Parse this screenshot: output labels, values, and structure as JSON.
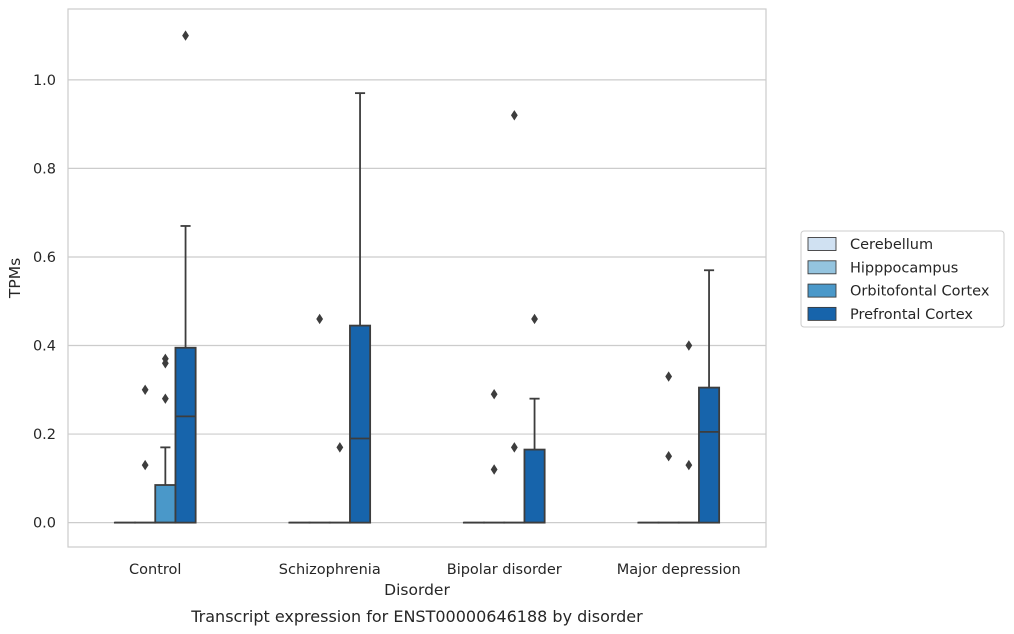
{
  "chart_data": {
    "type": "box",
    "xlabel": "Disorder",
    "ylabel": "TPMs",
    "caption": "Transcript expression for ENST00000646188 by disorder",
    "ylim": [
      -0.055,
      1.16
    ],
    "yticks": [
      "0.0",
      "0.2",
      "0.4",
      "0.6",
      "0.8",
      "1.0"
    ],
    "grid": true,
    "legend_position": "right",
    "categories": [
      "Control",
      "Schizophrenia",
      "Bipolar disorder",
      "Major depression"
    ],
    "series": [
      {
        "name": "Cerebellum",
        "color": "#d0e1f2",
        "boxes": [
          {
            "q1": 0,
            "median": 0,
            "q3": 0,
            "whislo": 0,
            "whishi": 0,
            "fliers": []
          },
          {
            "q1": 0,
            "median": 0,
            "q3": 0,
            "whislo": 0,
            "whishi": 0,
            "fliers": []
          },
          {
            "q1": 0,
            "median": 0,
            "q3": 0,
            "whislo": 0,
            "whishi": 0,
            "fliers": []
          },
          {
            "q1": 0,
            "median": 0,
            "q3": 0,
            "whislo": 0,
            "whishi": 0,
            "fliers": []
          }
        ]
      },
      {
        "name": "Hipppocampus",
        "color": "#94c4df",
        "boxes": [
          {
            "q1": 0,
            "median": 0,
            "q3": 0,
            "whislo": 0,
            "whishi": 0,
            "fliers": [
              0.13,
              0.3
            ]
          },
          {
            "q1": 0,
            "median": 0,
            "q3": 0,
            "whislo": 0,
            "whishi": 0,
            "fliers": [
              0.46
            ]
          },
          {
            "q1": 0,
            "median": 0,
            "q3": 0,
            "whislo": 0,
            "whishi": 0,
            "fliers": [
              0.12,
              0.29
            ]
          },
          {
            "q1": 0,
            "median": 0,
            "q3": 0,
            "whislo": 0,
            "whishi": 0,
            "fliers": [
              0.15,
              0.33
            ]
          }
        ]
      },
      {
        "name": "Orbitofontal Cortex",
        "color": "#4a98c9",
        "boxes": [
          {
            "q1": 0,
            "median": 0,
            "q3": 0.085,
            "whislo": 0,
            "whishi": 0.17,
            "fliers": [
              0.28,
              0.36,
              0.37
            ]
          },
          {
            "q1": 0,
            "median": 0,
            "q3": 0,
            "whislo": 0,
            "whishi": 0,
            "fliers": [
              0.17
            ]
          },
          {
            "q1": 0,
            "median": 0,
            "q3": 0,
            "whislo": 0,
            "whishi": 0,
            "fliers": [
              0.17,
              0.92
            ]
          },
          {
            "q1": 0,
            "median": 0,
            "q3": 0,
            "whislo": 0,
            "whishi": 0,
            "fliers": [
              0.13,
              0.4
            ]
          }
        ]
      },
      {
        "name": "Prefrontal Cortex",
        "color": "#1764ab",
        "boxes": [
          {
            "q1": 0,
            "median": 0.24,
            "q3": 0.395,
            "whislo": 0,
            "whishi": 0.67,
            "fliers": [
              1.1
            ]
          },
          {
            "q1": 0,
            "median": 0.19,
            "q3": 0.445,
            "whislo": 0,
            "whishi": 0.97,
            "fliers": []
          },
          {
            "q1": 0,
            "median": 0,
            "q3": 0.165,
            "whislo": 0,
            "whishi": 0.28,
            "fliers": [
              0.46
            ]
          },
          {
            "q1": 0,
            "median": 0.205,
            "q3": 0.305,
            "whislo": 0,
            "whishi": 0.57,
            "fliers": []
          }
        ]
      }
    ]
  }
}
